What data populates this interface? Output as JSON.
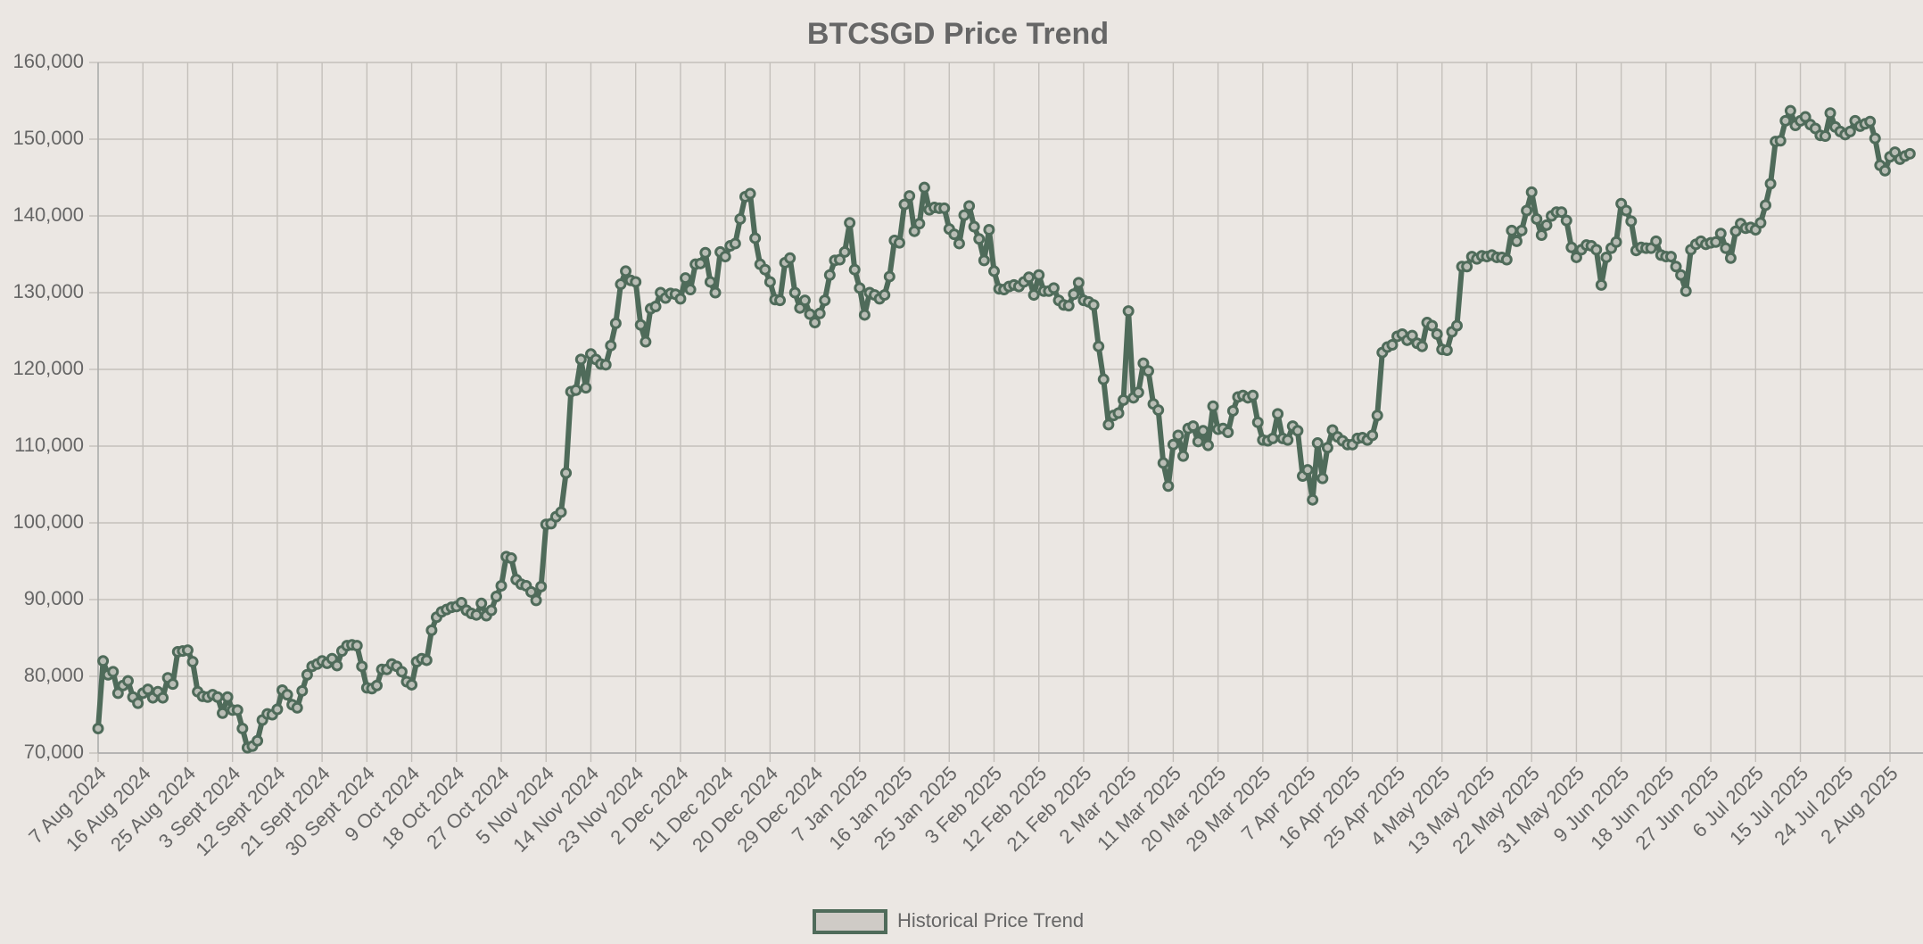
{
  "chart_data": {
    "type": "line",
    "title": "BTCSGD Price Trend",
    "categories": [
      "7 Aug 2024",
      null,
      null,
      null,
      null,
      null,
      null,
      null,
      null,
      "16 Aug 2024",
      null,
      null,
      null,
      null,
      null,
      null,
      null,
      null,
      "25 Aug 2024",
      null,
      null,
      null,
      null,
      null,
      null,
      null,
      null,
      "3 Sept 2024",
      null,
      null,
      null,
      null,
      null,
      null,
      null,
      null,
      "12 Sept 2024",
      null,
      null,
      null,
      null,
      null,
      null,
      null,
      null,
      "21 Sept 2024",
      null,
      null,
      null,
      null,
      null,
      null,
      null,
      null,
      "30 Sept 2024",
      null,
      null,
      null,
      null,
      null,
      null,
      null,
      null,
      "9 Oct 2024",
      null,
      null,
      null,
      null,
      null,
      null,
      null,
      null,
      "18 Oct 2024",
      null,
      null,
      null,
      null,
      null,
      null,
      null,
      null,
      "27 Oct 2024",
      null,
      null,
      null,
      null,
      null,
      null,
      null,
      null,
      "5 Nov 2024",
      null,
      null,
      null,
      null,
      null,
      null,
      null,
      null,
      "14 Nov 2024",
      null,
      null,
      null,
      null,
      null,
      null,
      null,
      null,
      "23 Nov 2024",
      null,
      null,
      null,
      null,
      null,
      null,
      null,
      null,
      "2 Dec 2024",
      null,
      null,
      null,
      null,
      null,
      null,
      null,
      null,
      "11 Dec 2024",
      null,
      null,
      null,
      null,
      null,
      null,
      null,
      null,
      "20 Dec 2024",
      null,
      null,
      null,
      null,
      null,
      null,
      null,
      null,
      "29 Dec 2024",
      null,
      null,
      null,
      null,
      null,
      null,
      null,
      null,
      "7 Jan 2025",
      null,
      null,
      null,
      null,
      null,
      null,
      null,
      null,
      "16 Jan 2025",
      null,
      null,
      null,
      null,
      null,
      null,
      null,
      null,
      "25 Jan 2025",
      null,
      null,
      null,
      null,
      null,
      null,
      null,
      null,
      "3 Feb 2025",
      null,
      null,
      null,
      null,
      null,
      null,
      null,
      null,
      "12 Feb 2025",
      null,
      null,
      null,
      null,
      null,
      null,
      null,
      null,
      "21 Feb 2025",
      null,
      null,
      null,
      null,
      null,
      null,
      null,
      null,
      "2 Mar 2025",
      null,
      null,
      null,
      null,
      null,
      null,
      null,
      null,
      "11 Mar 2025",
      null,
      null,
      null,
      null,
      null,
      null,
      null,
      null,
      "20 Mar 2025",
      null,
      null,
      null,
      null,
      null,
      null,
      null,
      null,
      "29 Mar 2025",
      null,
      null,
      null,
      null,
      null,
      null,
      null,
      null,
      "7 Apr 2025",
      null,
      null,
      null,
      null,
      null,
      null,
      null,
      null,
      "16 Apr 2025",
      null,
      null,
      null,
      null,
      null,
      null,
      null,
      null,
      "25 Apr 2025",
      null,
      null,
      null,
      null,
      null,
      null,
      null,
      null,
      "4 May 2025",
      null,
      null,
      null,
      null,
      null,
      null,
      null,
      null,
      "13 May 2025",
      null,
      null,
      null,
      null,
      null,
      null,
      null,
      null,
      "22 May 2025",
      null,
      null,
      null,
      null,
      null,
      null,
      null,
      null,
      "31 May 2025",
      null,
      null,
      null,
      null,
      null,
      null,
      null,
      null,
      "9 Jun 2025",
      null,
      null,
      null,
      null,
      null,
      null,
      null,
      null,
      "18 Jun 2025",
      null,
      null,
      null,
      null,
      null,
      null,
      null,
      null,
      "27 Jun 2025",
      null,
      null,
      null,
      null,
      null,
      null,
      null,
      null,
      "6 Jul 2025",
      null,
      null,
      null,
      null,
      null,
      null,
      null,
      null,
      "15 Jul 2025",
      null,
      null,
      null,
      null,
      null,
      null,
      null,
      null,
      "24 Jul 2025",
      null,
      null,
      null,
      null,
      null,
      null,
      null,
      null,
      "2 Aug 2025",
      null,
      null,
      null,
      null
    ],
    "series": [
      {
        "name": "Historical Price Trend",
        "color": "#4f6b5a",
        "point_fill": "#b9bdb5",
        "legend_fill": "#cfcbc6",
        "values": [
          73200,
          82000,
          80200,
          80600,
          77800,
          78800,
          79400,
          77300,
          76500,
          77800,
          78300,
          77200,
          78000,
          77200,
          79800,
          79000,
          83200,
          83300,
          83400,
          81900,
          78000,
          77400,
          77300,
          77600,
          77300,
          75200,
          77300,
          75600,
          75600,
          73200,
          70700,
          70900,
          71600,
          74300,
          75100,
          75000,
          75700,
          78200,
          77600,
          76300,
          75900,
          78100,
          80200,
          81300,
          81600,
          82000,
          81700,
          82300,
          81400,
          83300,
          84000,
          84100,
          84000,
          81300,
          78500,
          78400,
          78800,
          80900,
          80900,
          81600,
          81300,
          80600,
          79300,
          78900,
          81900,
          82300,
          82100,
          86000,
          87700,
          88400,
          88700,
          89000,
          89100,
          89600,
          88600,
          88200,
          88000,
          89500,
          87900,
          88600,
          90400,
          91800,
          95600,
          95400,
          92600,
          92000,
          91800,
          91000,
          89900,
          91700,
          99800,
          99900,
          100800,
          101400,
          106500,
          117100,
          117300,
          121300,
          117600,
          122000,
          121300,
          120700,
          120600,
          123100,
          126000,
          131100,
          132800,
          131600,
          131400,
          125800,
          123600,
          127900,
          128200,
          130000,
          129300,
          129900,
          129800,
          129200,
          131900,
          130400,
          133700,
          133800,
          135200,
          131400,
          130000,
          135300,
          134700,
          136100,
          136400,
          139600,
          142500,
          142900,
          137100,
          133700,
          133000,
          131400,
          129100,
          129000,
          133900,
          134500,
          130000,
          128000,
          129000,
          127200,
          126100,
          127300,
          129000,
          132300,
          134200,
          134300,
          135300,
          139100,
          133000,
          130600,
          127100,
          130000,
          129700,
          129200,
          129700,
          132100,
          136800,
          136500,
          141500,
          142600,
          138000,
          139000,
          143700,
          140800,
          141100,
          141000,
          141000,
          138300,
          137600,
          136400,
          140100,
          141300,
          138600,
          137000,
          134200,
          138200,
          132800,
          130500,
          130400,
          130800,
          131000,
          130800,
          131400,
          132000,
          129700,
          132300,
          130200,
          130200,
          130600,
          129000,
          128400,
          128300,
          129800,
          131300,
          129000,
          128800,
          128400,
          123000,
          118700,
          112800,
          114000,
          114300,
          116000,
          127600,
          116300,
          117000,
          120800,
          119800,
          115500,
          114700,
          107800,
          104800,
          110200,
          111400,
          108700,
          112300,
          112600,
          110600,
          112000,
          110100,
          115200,
          112200,
          112300,
          111800,
          114600,
          116400,
          116600,
          116300,
          116600,
          113100,
          110800,
          110700,
          111000,
          114200,
          111000,
          110800,
          112600,
          112000,
          106100,
          106900,
          103000,
          110400,
          105800,
          109800,
          112100,
          111200,
          110700,
          110200,
          110200,
          111000,
          111100,
          110800,
          111400,
          114000,
          122200,
          122900,
          123200,
          124300,
          124600,
          123800,
          124400,
          123400,
          123000,
          126100,
          125700,
          124600,
          122600,
          122500,
          124900,
          125700,
          133400,
          133400,
          134700,
          134400,
          134800,
          134700,
          134900,
          134600,
          134600,
          134300,
          138100,
          136700,
          138100,
          140700,
          143100,
          139600,
          137500,
          138800,
          140000,
          140500,
          140500,
          139400,
          135900,
          134600,
          135600,
          136200,
          136100,
          135600,
          131000,
          134600,
          135800,
          136600,
          141600,
          140700,
          139300,
          135500,
          135900,
          135800,
          135800,
          136700,
          134900,
          134700,
          134700,
          133400,
          132300,
          130200,
          135600,
          136300,
          136700,
          136300,
          136500,
          136600,
          137700,
          135800,
          134500,
          138000,
          139000,
          138400,
          138500,
          138200,
          139100,
          141400,
          144200,
          149700,
          149800,
          152400,
          153700,
          151800,
          152400,
          152900,
          151900,
          151400,
          150500,
          150400,
          153400,
          151600,
          151000,
          150600,
          151000,
          152400,
          151700,
          152000,
          152300,
          150100,
          146600,
          145900,
          147700,
          148300,
          147400,
          147800,
          148100
        ]
      }
    ],
    "ylim": [
      70000,
      160000
    ],
    "yticks": [
      {
        "value": 70000,
        "label": "70,000"
      },
      {
        "value": 80000,
        "label": "80,000"
      },
      {
        "value": 90000,
        "label": "90,000"
      },
      {
        "value": 100000,
        "label": "100,000"
      },
      {
        "value": 110000,
        "label": "110,000"
      },
      {
        "value": 120000,
        "label": "120,000"
      },
      {
        "value": 130000,
        "label": "130,000"
      },
      {
        "value": 140000,
        "label": "140,000"
      },
      {
        "value": 150000,
        "label": "150,000"
      },
      {
        "value": 160000,
        "label": "160,000"
      }
    ],
    "grid": true,
    "legend": "bottom"
  }
}
